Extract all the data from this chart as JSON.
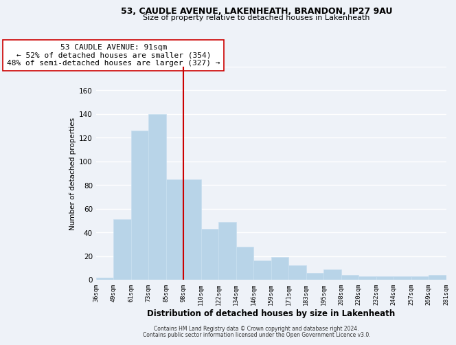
{
  "title1": "53, CAUDLE AVENUE, LAKENHEATH, BRANDON, IP27 9AU",
  "title2": "Size of property relative to detached houses in Lakenheath",
  "xlabel": "Distribution of detached houses by size in Lakenheath",
  "ylabel": "Number of detached properties",
  "categories": [
    "36sqm",
    "49sqm",
    "61sqm",
    "73sqm",
    "85sqm",
    "98sqm",
    "110sqm",
    "122sqm",
    "134sqm",
    "146sqm",
    "159sqm",
    "171sqm",
    "183sqm",
    "195sqm",
    "208sqm",
    "220sqm",
    "232sqm",
    "244sqm",
    "257sqm",
    "269sqm",
    "281sqm"
  ],
  "values": [
    2,
    51,
    126,
    140,
    85,
    85,
    43,
    49,
    28,
    16,
    19,
    12,
    6,
    9,
    4,
    3,
    3,
    3,
    3,
    4
  ],
  "bar_color": "#b8d4e8",
  "bar_edge_color": "#c8dff0",
  "vline_color": "#cc0000",
  "annotation_line1": "53 CAUDLE AVENUE: 91sqm",
  "annotation_line2": "← 52% of detached houses are smaller (354)",
  "annotation_line3": "48% of semi-detached houses are larger (327) →",
  "annotation_box_color": "#ffffff",
  "annotation_box_edge": "#cc0000",
  "ylim": [
    0,
    180
  ],
  "yticks": [
    0,
    20,
    40,
    60,
    80,
    100,
    120,
    140,
    160,
    180
  ],
  "footer1": "Contains HM Land Registry data © Crown copyright and database right 2024.",
  "footer2": "Contains public sector information licensed under the Open Government Licence v3.0.",
  "bg_color": "#eef2f8",
  "grid_color": "#ffffff",
  "vline_bar_index": 4
}
